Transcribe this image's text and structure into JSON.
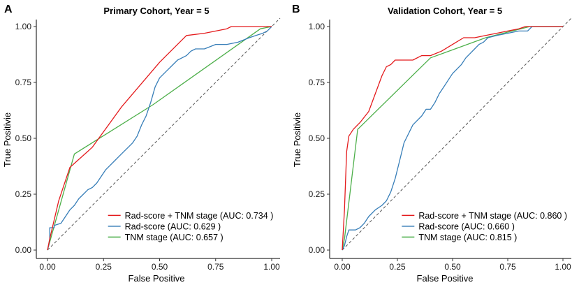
{
  "chart_data": [
    {
      "type": "line",
      "panel_label": "A",
      "title": "Primary Cohort, Year = 5",
      "xlabel": "False Positive",
      "ylabel": "True Positivie",
      "xlim": [
        0,
        1
      ],
      "ylim": [
        0,
        1
      ],
      "xticks": [
        "0.00",
        "0.25",
        "0.50",
        "0.75",
        "1.00"
      ],
      "yticks": [
        "0.00",
        "0.25",
        "0.50",
        "0.75",
        "1.00"
      ],
      "diagonal": true,
      "legend_position": "bottom-right",
      "series": [
        {
          "name": "Rad-score + TNM stage",
          "legend": "Rad-score + TNM stage  (AUC: 0.734 )",
          "color": "#e41a1c",
          "x": [
            0,
            0.01,
            0.05,
            0.1,
            0.2,
            0.33,
            0.5,
            0.62,
            0.7,
            0.8,
            0.82,
            1.0
          ],
          "y": [
            0,
            0.05,
            0.22,
            0.37,
            0.46,
            0.64,
            0.84,
            0.96,
            0.97,
            0.99,
            1.0,
            1.0
          ]
        },
        {
          "name": "Rad-score",
          "legend": "Rad-score  (AUC: 0.629 )",
          "color": "#377eb8",
          "x": [
            0,
            0.005,
            0.01,
            0.01,
            0.03,
            0.03,
            0.06,
            0.08,
            0.1,
            0.12,
            0.14,
            0.16,
            0.18,
            0.2,
            0.22,
            0.24,
            0.26,
            0.28,
            0.3,
            0.32,
            0.34,
            0.36,
            0.38,
            0.4,
            0.42,
            0.44,
            0.46,
            0.48,
            0.5,
            0.52,
            0.54,
            0.56,
            0.58,
            0.6,
            0.62,
            0.64,
            0.66,
            0.7,
            0.75,
            0.8,
            0.85,
            0.9,
            0.93,
            0.96,
            0.98,
            1.0
          ],
          "y": [
            0,
            0.02,
            0.05,
            0.1,
            0.1,
            0.11,
            0.12,
            0.15,
            0.18,
            0.2,
            0.23,
            0.25,
            0.27,
            0.28,
            0.3,
            0.33,
            0.36,
            0.38,
            0.4,
            0.42,
            0.44,
            0.46,
            0.48,
            0.51,
            0.56,
            0.6,
            0.66,
            0.73,
            0.77,
            0.79,
            0.81,
            0.83,
            0.85,
            0.86,
            0.87,
            0.89,
            0.9,
            0.9,
            0.92,
            0.92,
            0.93,
            0.95,
            0.96,
            0.97,
            0.98,
            1.0
          ]
        },
        {
          "name": "TNM stage",
          "legend": "TNM stage  (AUC: 0.657 )",
          "color": "#4daf4a",
          "x": [
            0,
            0.12,
            0.47,
            0.95,
            1.0
          ],
          "y": [
            0,
            0.43,
            0.65,
            0.99,
            1.0
          ]
        }
      ]
    },
    {
      "type": "line",
      "panel_label": "B",
      "title": "Validation Cohort, Year = 5",
      "xlabel": "False Positive",
      "ylabel": "True Positivie",
      "xlim": [
        0,
        1
      ],
      "ylim": [
        0,
        1
      ],
      "xticks": [
        "0.00",
        "0.25",
        "0.50",
        "0.75",
        "1.00"
      ],
      "yticks": [
        "0.00",
        "0.25",
        "0.50",
        "0.75",
        "1.00"
      ],
      "diagonal": true,
      "legend_position": "bottom-right",
      "series": [
        {
          "name": "Rad-score + TNM stage",
          "legend": "Rad-score + TNM stage  (AUC: 0.860 )",
          "color": "#e41a1c",
          "x": [
            0,
            0.01,
            0.02,
            0.03,
            0.05,
            0.08,
            0.12,
            0.15,
            0.18,
            0.2,
            0.22,
            0.24,
            0.28,
            0.32,
            0.36,
            0.4,
            0.45,
            0.5,
            0.55,
            0.6,
            0.65,
            0.7,
            0.75,
            0.8,
            0.83,
            1.0
          ],
          "y": [
            0,
            0.18,
            0.44,
            0.51,
            0.54,
            0.57,
            0.62,
            0.7,
            0.78,
            0.82,
            0.83,
            0.85,
            0.85,
            0.85,
            0.87,
            0.87,
            0.89,
            0.92,
            0.95,
            0.95,
            0.96,
            0.97,
            0.98,
            0.99,
            1.0,
            1.0
          ]
        },
        {
          "name": "Rad-score",
          "legend": "Rad-score  (AUC: 0.660 )",
          "color": "#377eb8",
          "x": [
            0,
            0.01,
            0.02,
            0.03,
            0.06,
            0.08,
            0.1,
            0.12,
            0.15,
            0.18,
            0.2,
            0.22,
            0.24,
            0.26,
            0.28,
            0.3,
            0.32,
            0.34,
            0.36,
            0.38,
            0.4,
            0.42,
            0.44,
            0.46,
            0.48,
            0.5,
            0.52,
            0.54,
            0.56,
            0.58,
            0.6,
            0.62,
            0.64,
            0.66,
            0.7,
            0.75,
            0.8,
            0.84,
            0.86,
            1.0
          ],
          "y": [
            0,
            0.02,
            0.06,
            0.09,
            0.09,
            0.1,
            0.12,
            0.15,
            0.18,
            0.2,
            0.22,
            0.26,
            0.32,
            0.4,
            0.48,
            0.52,
            0.56,
            0.58,
            0.6,
            0.63,
            0.63,
            0.66,
            0.7,
            0.73,
            0.76,
            0.79,
            0.81,
            0.83,
            0.86,
            0.88,
            0.9,
            0.92,
            0.93,
            0.95,
            0.96,
            0.97,
            0.98,
            0.98,
            1.0,
            1.0
          ]
        },
        {
          "name": "TNM stage",
          "legend": "TNM stage  (AUC: 0.815 )",
          "color": "#4daf4a",
          "x": [
            0,
            0.01,
            0.07,
            0.4,
            0.65,
            0.85,
            1.0
          ],
          "y": [
            0,
            0.05,
            0.54,
            0.86,
            0.95,
            1.0,
            1.0
          ]
        }
      ]
    }
  ]
}
